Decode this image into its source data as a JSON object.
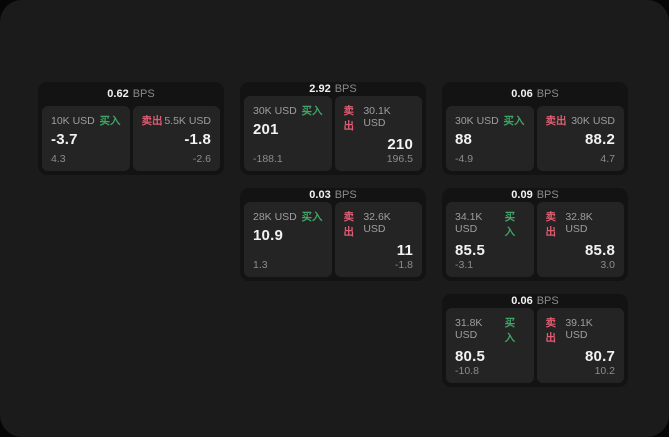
{
  "labels": {
    "bps_unit": "BPS",
    "buy_tag": "买入",
    "sell_tag": "卖出"
  },
  "colors": {
    "outer_background": "#060606",
    "window_background": "#1b1b1b",
    "card_background": "#131313",
    "panel_background": "#242424",
    "buy_green": "#3fa564",
    "sell_red": "#df5c72",
    "primary_text": "#f2f2f2",
    "secondary_text": "#9e9e9e"
  },
  "cards": [
    {
      "bps": "0.62",
      "buy": {
        "amount": "10K USD",
        "price": "-3.7",
        "delta": "4.3"
      },
      "sell": {
        "amount": "5.5K USD",
        "price": "-1.8",
        "delta": "-2.6"
      }
    },
    {
      "bps": "2.92",
      "buy": {
        "amount": "30K USD",
        "price": "201",
        "delta": "-188.1"
      },
      "sell": {
        "amount": "30.1K USD",
        "price": "210",
        "delta": "196.5"
      }
    },
    {
      "bps": "0.06",
      "buy": {
        "amount": "30K USD",
        "price": "88",
        "delta": "-4.9"
      },
      "sell": {
        "amount": "30K USD",
        "price": "88.2",
        "delta": "4.7"
      }
    },
    {
      "bps": "0.03",
      "buy": {
        "amount": "28K USD",
        "price": "10.9",
        "delta": "1.3"
      },
      "sell": {
        "amount": "32.6K USD",
        "price": "11",
        "delta": "-1.8"
      }
    },
    {
      "bps": "0.09",
      "buy": {
        "amount": "34.1K USD",
        "price": "85.5",
        "delta": "-3.1"
      },
      "sell": {
        "amount": "32.8K USD",
        "price": "85.8",
        "delta": "3.0"
      }
    },
    {
      "bps": "0.06",
      "buy": {
        "amount": "31.8K USD",
        "price": "80.5",
        "delta": "-10.8"
      },
      "sell": {
        "amount": "39.1K USD",
        "price": "80.7",
        "delta": "10.2"
      }
    }
  ]
}
